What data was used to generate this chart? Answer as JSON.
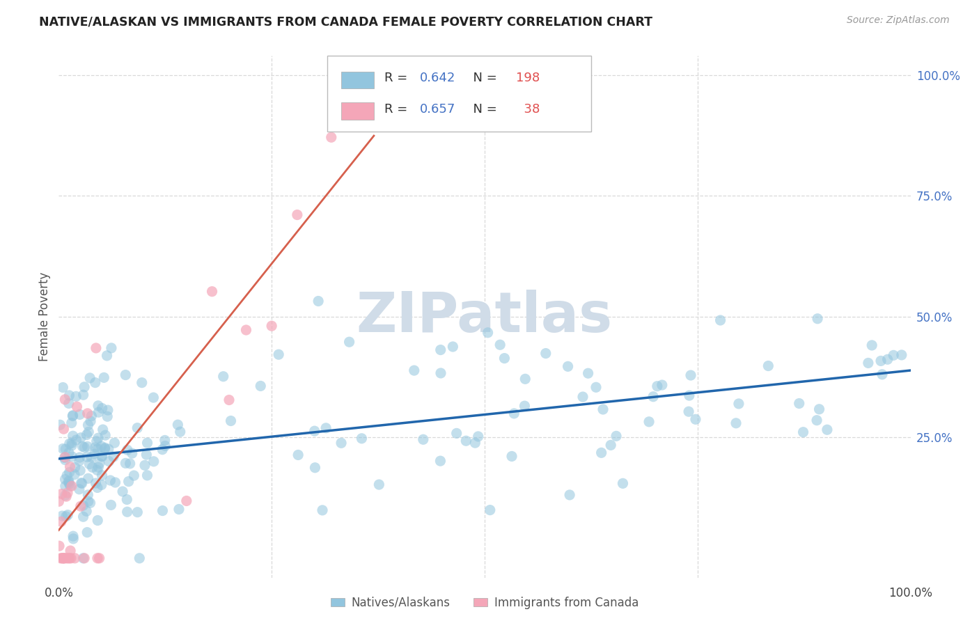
{
  "title": "NATIVE/ALASKAN VS IMMIGRANTS FROM CANADA FEMALE POVERTY CORRELATION CHART",
  "source": "Source: ZipAtlas.com",
  "ylabel": "Female Poverty",
  "blue_R": 0.642,
  "blue_N": 198,
  "pink_R": 0.657,
  "pink_N": 38,
  "blue_color": "#92c5de",
  "blue_line_color": "#2166ac",
  "pink_color": "#f4a6b8",
  "pink_line_color": "#d6604d",
  "watermark_color": "#d0dce8",
  "background_color": "#ffffff",
  "grid_color": "#d9d9d9",
  "title_color": "#222222",
  "source_color": "#999999",
  "ylabel_color": "#555555",
  "tick_color": "#4472c4",
  "legend_R_color": "#4472c4",
  "legend_N_color": "#e05050",
  "blue_seed": 12,
  "pink_seed": 77,
  "blue_intercept": 0.195,
  "blue_slope": 0.2,
  "blue_noise": 0.085,
  "pink_intercept": -0.02,
  "pink_slope": 2.8,
  "pink_noise": 0.18,
  "xlim": [
    0.0,
    1.0
  ],
  "ylim": [
    -0.04,
    1.04
  ]
}
